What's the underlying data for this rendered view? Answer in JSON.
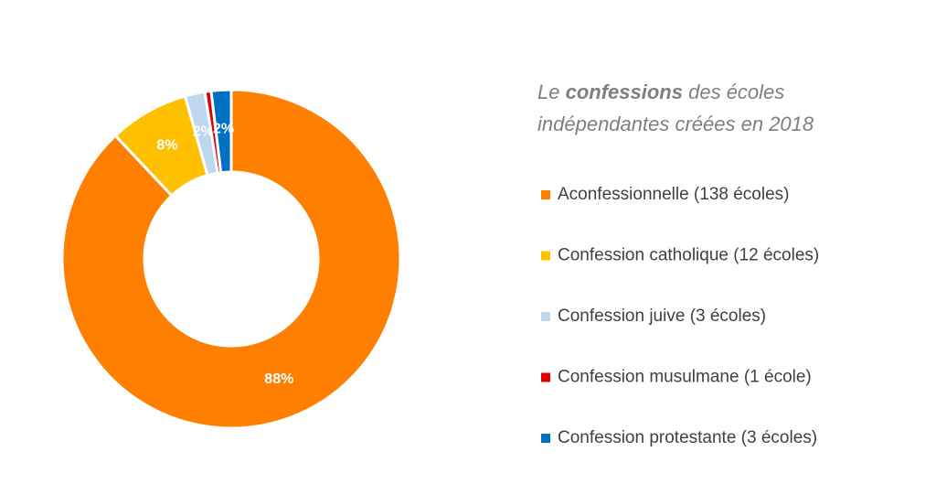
{
  "chart_data": {
    "type": "donut",
    "title": [
      "Le",
      "confessions",
      "des écoles",
      "indépendantes créées en 2018"
    ],
    "categories": [
      "Aconfessionnelle (138 écoles)",
      "Confession catholique (12 écoles)",
      "Confession juive (3 écoles)",
      "Confession musulmane (1 école)",
      "Confession protestante (3 écoles)"
    ],
    "values": [
      87.9,
      7.6,
      1.9,
      0.6,
      1.9
    ],
    "value_labels": [
      "88%",
      "8%",
      "2%",
      null,
      "2%"
    ],
    "colors": [
      "#ff7f00",
      "#ffc000",
      "#bdd7ee",
      "#e00000",
      "#0070c0"
    ],
    "legend": "right"
  }
}
